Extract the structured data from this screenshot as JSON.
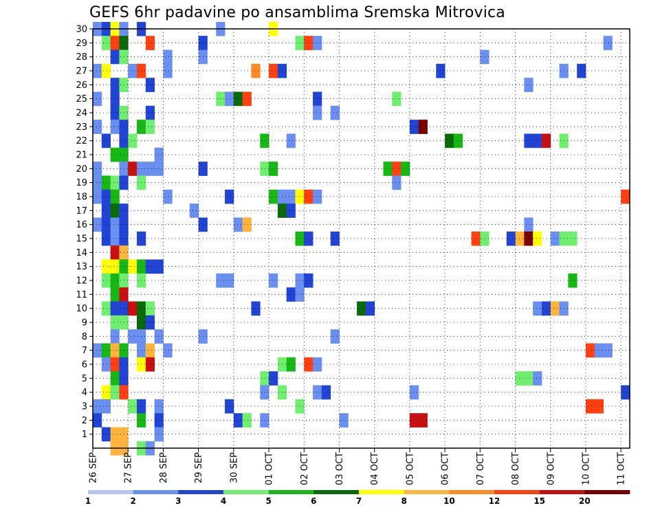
{
  "chart_data": {
    "type": "heatmap",
    "title": "GEFS 6hr padavine po ansamblima Sremska Mitrovica",
    "xlabel": "",
    "ylabel": "",
    "x_ticks": [
      "26 SEP",
      "27 SEP",
      "28 SEP",
      "29 SEP",
      "30 SEP",
      "01 OCT",
      "02 OCT",
      "03 OCT",
      "04 OCT",
      "05 OCT",
      "06 OCT",
      "07 OCT",
      "08 OCT",
      "09 OCT",
      "10 OCT",
      "11 OCT"
    ],
    "y_ticks": [
      1,
      2,
      3,
      4,
      5,
      6,
      7,
      8,
      9,
      10,
      11,
      12,
      13,
      14,
      15,
      16,
      17,
      18,
      19,
      20,
      21,
      22,
      23,
      24,
      25,
      26,
      27,
      28,
      29,
      30
    ],
    "x_range_steps": [
      0,
      61
    ],
    "y_range": [
      0,
      30
    ],
    "steps_per_day": 4,
    "grid": true,
    "legend": {
      "position": "bottom",
      "levels": [
        "1",
        "2",
        "3",
        "4",
        "5",
        "6",
        "7",
        "8",
        "10",
        "12",
        "15",
        "20"
      ],
      "colors": [
        "#b8c8f4",
        "#6b8ff0",
        "#2244d4",
        "#6fee6f",
        "#16b816",
        "#086a08",
        "#ffff00",
        "#ffb43c",
        "#ff8a24",
        "#ff4010",
        "#c81010",
        "#7a0000"
      ]
    },
    "cells": [
      [
        0,
        30,
        1
      ],
      [
        1,
        30,
        2
      ],
      [
        2,
        30,
        6
      ],
      [
        3,
        30,
        1
      ],
      [
        5,
        30,
        2
      ],
      [
        14,
        30,
        1
      ],
      [
        20,
        30,
        6
      ],
      [
        1,
        29,
        3
      ],
      [
        2,
        29,
        9
      ],
      [
        3,
        29,
        5
      ],
      [
        6,
        29,
        9
      ],
      [
        12,
        29,
        2
      ],
      [
        23,
        29,
        3
      ],
      [
        24,
        29,
        9
      ],
      [
        25,
        29,
        1
      ],
      [
        58,
        29,
        1
      ],
      [
        2,
        28,
        2
      ],
      [
        3,
        28,
        3
      ],
      [
        8,
        28,
        1
      ],
      [
        12,
        28,
        1
      ],
      [
        44,
        28,
        1
      ],
      [
        0,
        27,
        1
      ],
      [
        1,
        27,
        6
      ],
      [
        4,
        27,
        1
      ],
      [
        5,
        27,
        9
      ],
      [
        8,
        27,
        1
      ],
      [
        18,
        27,
        8
      ],
      [
        20,
        27,
        9
      ],
      [
        21,
        27,
        2
      ],
      [
        39,
        27,
        2
      ],
      [
        53,
        27,
        1
      ],
      [
        55,
        27,
        2
      ],
      [
        2,
        26,
        2
      ],
      [
        3,
        26,
        3
      ],
      [
        6,
        26,
        2
      ],
      [
        49,
        26,
        1
      ],
      [
        0,
        25,
        1
      ],
      [
        2,
        25,
        2
      ],
      [
        14,
        25,
        3
      ],
      [
        15,
        25,
        1
      ],
      [
        16,
        25,
        5
      ],
      [
        17,
        25,
        9
      ],
      [
        25,
        25,
        2
      ],
      [
        34,
        25,
        3
      ],
      [
        2,
        24,
        2
      ],
      [
        3,
        24,
        3
      ],
      [
        6,
        24,
        2
      ],
      [
        25,
        24,
        1
      ],
      [
        27,
        24,
        1
      ],
      [
        0,
        23,
        1
      ],
      [
        2,
        23,
        1
      ],
      [
        3,
        23,
        2
      ],
      [
        5,
        23,
        4
      ],
      [
        6,
        23,
        3
      ],
      [
        36,
        23,
        2
      ],
      [
        37,
        23,
        11
      ],
      [
        1,
        22,
        2
      ],
      [
        3,
        22,
        2
      ],
      [
        4,
        22,
        3
      ],
      [
        19,
        22,
        4
      ],
      [
        22,
        22,
        1
      ],
      [
        40,
        22,
        5
      ],
      [
        41,
        22,
        4
      ],
      [
        49,
        22,
        2
      ],
      [
        50,
        22,
        2
      ],
      [
        51,
        22,
        10
      ],
      [
        53,
        22,
        3
      ],
      [
        2,
        21,
        4
      ],
      [
        3,
        21,
        4
      ],
      [
        7,
        21,
        1
      ],
      [
        0,
        20,
        1
      ],
      [
        3,
        20,
        1
      ],
      [
        4,
        20,
        10
      ],
      [
        5,
        20,
        1
      ],
      [
        6,
        20,
        1
      ],
      [
        7,
        20,
        1
      ],
      [
        12,
        20,
        2
      ],
      [
        19,
        20,
        3
      ],
      [
        20,
        20,
        4
      ],
      [
        33,
        20,
        4
      ],
      [
        34,
        20,
        9
      ],
      [
        35,
        20,
        4
      ],
      [
        0,
        19,
        1
      ],
      [
        1,
        19,
        4
      ],
      [
        2,
        19,
        3
      ],
      [
        3,
        19,
        2
      ],
      [
        5,
        19,
        3
      ],
      [
        34,
        19,
        1
      ],
      [
        0,
        18,
        1
      ],
      [
        1,
        18,
        2
      ],
      [
        2,
        18,
        4
      ],
      [
        8,
        18,
        1
      ],
      [
        15,
        18,
        2
      ],
      [
        20,
        18,
        4
      ],
      [
        21,
        18,
        1
      ],
      [
        22,
        18,
        1
      ],
      [
        23,
        18,
        6
      ],
      [
        24,
        18,
        9
      ],
      [
        25,
        18,
        1
      ],
      [
        60,
        18,
        9
      ],
      [
        1,
        17,
        2
      ],
      [
        2,
        17,
        5
      ],
      [
        3,
        17,
        2
      ],
      [
        11,
        17,
        1
      ],
      [
        21,
        17,
        5
      ],
      [
        22,
        17,
        2
      ],
      [
        0,
        16,
        1
      ],
      [
        1,
        16,
        2
      ],
      [
        2,
        16,
        1
      ],
      [
        3,
        16,
        2
      ],
      [
        12,
        16,
        2
      ],
      [
        16,
        16,
        1
      ],
      [
        17,
        16,
        7
      ],
      [
        49,
        16,
        1
      ],
      [
        1,
        15,
        2
      ],
      [
        2,
        15,
        1
      ],
      [
        3,
        15,
        2
      ],
      [
        5,
        15,
        2
      ],
      [
        23,
        15,
        4
      ],
      [
        24,
        15,
        2
      ],
      [
        27,
        15,
        2
      ],
      [
        43,
        15,
        9
      ],
      [
        44,
        15,
        3
      ],
      [
        47,
        15,
        2
      ],
      [
        48,
        15,
        7
      ],
      [
        49,
        15,
        11
      ],
      [
        50,
        15,
        6
      ],
      [
        52,
        15,
        1
      ],
      [
        53,
        15,
        3
      ],
      [
        54,
        15,
        3
      ],
      [
        2,
        14,
        10
      ],
      [
        3,
        14,
        7
      ],
      [
        1,
        13,
        6
      ],
      [
        2,
        13,
        6
      ],
      [
        3,
        13,
        4
      ],
      [
        4,
        13,
        6
      ],
      [
        5,
        13,
        4
      ],
      [
        6,
        13,
        2
      ],
      [
        7,
        13,
        2
      ],
      [
        1,
        12,
        3
      ],
      [
        2,
        12,
        4
      ],
      [
        3,
        12,
        3
      ],
      [
        5,
        12,
        3
      ],
      [
        14,
        12,
        1
      ],
      [
        15,
        12,
        1
      ],
      [
        20,
        12,
        1
      ],
      [
        23,
        12,
        1
      ],
      [
        24,
        12,
        2
      ],
      [
        54,
        12,
        4
      ],
      [
        2,
        11,
        4
      ],
      [
        3,
        11,
        10
      ],
      [
        22,
        11,
        2
      ],
      [
        23,
        11,
        1
      ],
      [
        1,
        10,
        3
      ],
      [
        2,
        10,
        2
      ],
      [
        3,
        10,
        2
      ],
      [
        4,
        10,
        10
      ],
      [
        5,
        10,
        5
      ],
      [
        6,
        10,
        3
      ],
      [
        18,
        10,
        2
      ],
      [
        30,
        10,
        5
      ],
      [
        31,
        10,
        2
      ],
      [
        50,
        10,
        1
      ],
      [
        51,
        10,
        2
      ],
      [
        52,
        10,
        7
      ],
      [
        53,
        10,
        1
      ],
      [
        2,
        9,
        3
      ],
      [
        3,
        9,
        3
      ],
      [
        5,
        9,
        5
      ],
      [
        6,
        9,
        2
      ],
      [
        2,
        8,
        1
      ],
      [
        4,
        8,
        1
      ],
      [
        5,
        8,
        1
      ],
      [
        7,
        8,
        1
      ],
      [
        12,
        8,
        1
      ],
      [
        27,
        8,
        1
      ],
      [
        0,
        7,
        1
      ],
      [
        1,
        7,
        4
      ],
      [
        2,
        7,
        7
      ],
      [
        3,
        7,
        4
      ],
      [
        5,
        7,
        1
      ],
      [
        6,
        7,
        7
      ],
      [
        8,
        7,
        1
      ],
      [
        56,
        7,
        9
      ],
      [
        57,
        7,
        1
      ],
      [
        58,
        7,
        1
      ],
      [
        1,
        6,
        1
      ],
      [
        2,
        6,
        9
      ],
      [
        3,
        6,
        2
      ],
      [
        5,
        6,
        6
      ],
      [
        6,
        6,
        10
      ],
      [
        21,
        6,
        3
      ],
      [
        22,
        6,
        4
      ],
      [
        24,
        6,
        9
      ],
      [
        25,
        6,
        1
      ],
      [
        2,
        5,
        4
      ],
      [
        3,
        5,
        2
      ],
      [
        19,
        5,
        3
      ],
      [
        20,
        5,
        2
      ],
      [
        48,
        5,
        3
      ],
      [
        49,
        5,
        3
      ],
      [
        50,
        5,
        1
      ],
      [
        1,
        4,
        6
      ],
      [
        2,
        4,
        3
      ],
      [
        3,
        4,
        9
      ],
      [
        19,
        4,
        1
      ],
      [
        21,
        4,
        3
      ],
      [
        25,
        4,
        1
      ],
      [
        26,
        4,
        2
      ],
      [
        36,
        4,
        1
      ],
      [
        60,
        4,
        2
      ],
      [
        0,
        3,
        1
      ],
      [
        1,
        3,
        1
      ],
      [
        4,
        3,
        3
      ],
      [
        5,
        3,
        2
      ],
      [
        7,
        3,
        1
      ],
      [
        15,
        3,
        2
      ],
      [
        23,
        3,
        3
      ],
      [
        56,
        3,
        9
      ],
      [
        57,
        3,
        9
      ],
      [
        0,
        2,
        2
      ],
      [
        5,
        2,
        4
      ],
      [
        7,
        2,
        2
      ],
      [
        16,
        2,
        2
      ],
      [
        17,
        2,
        3
      ],
      [
        19,
        2,
        1
      ],
      [
        28,
        2,
        1
      ],
      [
        36,
        2,
        10
      ],
      [
        37,
        2,
        10
      ],
      [
        1,
        1,
        2
      ],
      [
        2,
        1,
        7
      ],
      [
        3,
        1,
        7
      ],
      [
        7,
        1,
        1
      ],
      [
        2,
        0,
        7
      ],
      [
        3,
        0,
        7
      ],
      [
        5,
        0,
        3
      ],
      [
        6,
        0,
        1
      ]
    ]
  }
}
